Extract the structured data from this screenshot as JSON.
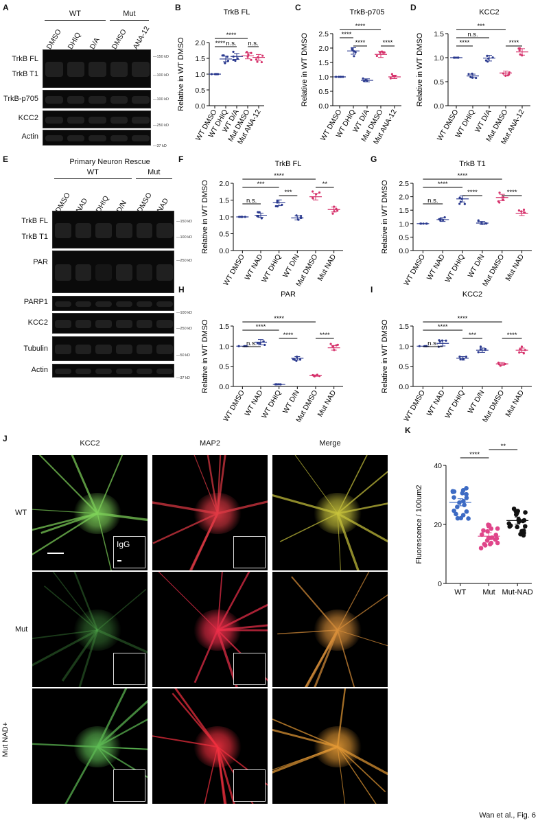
{
  "footer": "Wan et al., Fig. 6",
  "panelA": {
    "letter": "A",
    "groups": [
      "WT",
      "Mut"
    ],
    "lanes": [
      "DMSO",
      "DHIQ",
      "D/A",
      "DMSO",
      "ANA-12"
    ],
    "rows": [
      "TrkB FL",
      "TrkB T1",
      "TrkB-p705",
      "KCC2",
      "Actin"
    ],
    "markers": [
      "150 kD",
      "100 kD",
      "100 kD",
      "250 kD",
      "37 kD"
    ]
  },
  "panelE": {
    "letter": "E",
    "title": "Primary Neuron Rescue",
    "groups": [
      "WT",
      "Mut"
    ],
    "lanes": [
      "DMSO",
      "NAD",
      "DHIQ",
      "D/N",
      "DMSO",
      "NAD"
    ],
    "rows": [
      "TrkB FL",
      "TrkB T1",
      "PAR",
      "PARP1",
      "KCC2",
      "Tubulin",
      "Actin"
    ],
    "markers": [
      "150 kD",
      "100 kD",
      "250 kD",
      "100 kD",
      "250 kD",
      "50 kD",
      "37 kD"
    ]
  },
  "panelJ": {
    "letter": "J",
    "columns": [
      "KCC2",
      "MAP2",
      "Merge"
    ],
    "rows": [
      "WT",
      "Mut",
      "Mut NAD+"
    ],
    "inset_label": "IgG"
  },
  "chart_data": [
    {
      "panel": "B",
      "type": "scatter",
      "title": "TrkB FL",
      "ylabel": "Relative in WT DMSO",
      "categories": [
        "WT DMSO",
        "WT DHIQ",
        "WT D/A",
        "Mut DMSO",
        "Mut ANA-12"
      ],
      "values": [
        1.0,
        1.48,
        1.56,
        1.58,
        1.53
      ],
      "ylim": [
        0,
        2.0
      ],
      "yticks": [
        "0.0",
        "0.5",
        "1.0",
        "1.5",
        "2.0"
      ],
      "colors": [
        "#2b3a8f",
        "#2b3a8f",
        "#2b3a8f",
        "#d6336c",
        "#d6336c"
      ],
      "annotations": [
        {
          "text": "****",
          "from": 0,
          "to": 3,
          "level": 0
        },
        {
          "text": "****",
          "from": 0,
          "to": 1,
          "level": 1
        },
        {
          "text": "n.s.",
          "from": 1,
          "to": 2,
          "level": 1
        },
        {
          "text": "n.s.",
          "from": 3,
          "to": 4,
          "level": 1
        }
      ]
    },
    {
      "panel": "C",
      "type": "scatter",
      "title": "TrkB-p705",
      "ylabel": "Relative in WT DMSO",
      "categories": [
        "WT DMSO",
        "WT DHIQ",
        "WT D/A",
        "Mut DMSO",
        "Mut ANA-12"
      ],
      "values": [
        1.0,
        1.9,
        0.88,
        1.78,
        1.0
      ],
      "ylim": [
        0,
        2.5
      ],
      "yticks": [
        "0.0",
        "0.5",
        "1.0",
        "1.5",
        "2.0",
        "2.5"
      ],
      "colors": [
        "#2b3a8f",
        "#2b3a8f",
        "#2b3a8f",
        "#d6336c",
        "#d6336c"
      ],
      "annotations": [
        {
          "text": "****",
          "from": 0,
          "to": 3,
          "level": 0
        },
        {
          "text": "****",
          "from": 0,
          "to": 1,
          "level": 1
        },
        {
          "text": "****",
          "from": 1,
          "to": 2,
          "level": 2
        },
        {
          "text": "****",
          "from": 3,
          "to": 4,
          "level": 2
        }
      ]
    },
    {
      "panel": "D",
      "type": "scatter",
      "title": "KCC2",
      "ylabel": "Relative in WT DMSO",
      "categories": [
        "WT DMSO",
        "WT DHIQ",
        "WT D/A",
        "Mut DMSO",
        "Mut ANA-12"
      ],
      "values": [
        1.0,
        0.62,
        0.99,
        0.68,
        1.12
      ],
      "ylim": [
        0,
        1.5
      ],
      "yticks": [
        "0.0",
        "0.5",
        "1.0",
        "1.5"
      ],
      "colors": [
        "#2b3a8f",
        "#2b3a8f",
        "#2b3a8f",
        "#d6336c",
        "#d6336c"
      ],
      "annotations": [
        {
          "text": "****",
          "from": 0,
          "to": 1,
          "level": 2
        },
        {
          "text": "n.s.",
          "from": 0,
          "to": 2,
          "level": 1
        },
        {
          "text": "***",
          "from": 0,
          "to": 3,
          "level": 0
        },
        {
          "text": "****",
          "from": 3,
          "to": 4,
          "level": 2
        }
      ]
    },
    {
      "panel": "F",
      "type": "scatter",
      "title": "TrkB FL",
      "ylabel": "Relative in WT DMSO",
      "categories": [
        "WT DMSO",
        "WT NAD",
        "WT DHIQ",
        "WT D/N",
        "Mut DMSO",
        "Mut NAD"
      ],
      "values": [
        1.0,
        1.05,
        1.42,
        0.97,
        1.6,
        1.22
      ],
      "ylim": [
        0,
        2.0
      ],
      "yticks": [
        "0.0",
        "0.5",
        "1.0",
        "1.5",
        "2.0"
      ],
      "colors": [
        "#2b3a8f",
        "#2b3a8f",
        "#2b3a8f",
        "#2b3a8f",
        "#d6336c",
        "#d6336c"
      ],
      "annotations": [
        {
          "text": "****",
          "from": 0,
          "to": 4,
          "level": 0
        },
        {
          "text": "***",
          "from": 0,
          "to": 2,
          "level": 1
        },
        {
          "text": "***",
          "from": 2,
          "to": 3,
          "level": 2
        },
        {
          "text": "**",
          "from": 4,
          "to": 5,
          "level": 1
        },
        {
          "text": "n.s.",
          "from": 0,
          "to": 1,
          "level": 3
        }
      ]
    },
    {
      "panel": "G",
      "type": "scatter",
      "title": "TrkB T1",
      "ylabel": "Relative in WT DMSO",
      "categories": [
        "WT DMSO",
        "WT NAD",
        "WT DHIQ",
        "WT D/N",
        "Mut DMSO",
        "Mut NAD"
      ],
      "values": [
        1.0,
        1.15,
        1.92,
        1.02,
        1.97,
        1.38
      ],
      "ylim": [
        0,
        2.5
      ],
      "yticks": [
        "0.0",
        "0.5",
        "1.0",
        "1.5",
        "2.0",
        "2.5"
      ],
      "colors": [
        "#2b3a8f",
        "#2b3a8f",
        "#2b3a8f",
        "#2b3a8f",
        "#d6336c",
        "#d6336c"
      ],
      "annotations": [
        {
          "text": "****",
          "from": 0,
          "to": 4,
          "level": 0
        },
        {
          "text": "****",
          "from": 0,
          "to": 2,
          "level": 1
        },
        {
          "text": "****",
          "from": 2,
          "to": 3,
          "level": 2
        },
        {
          "text": "****",
          "from": 4,
          "to": 5,
          "level": 2
        },
        {
          "text": "n.s.",
          "from": 0,
          "to": 1,
          "level": 3
        }
      ]
    },
    {
      "panel": "H",
      "type": "scatter",
      "title": "PAR",
      "ylabel": "Relative in WT DMSO",
      "categories": [
        "WT DMSO",
        "WT NAD",
        "WT DHIQ",
        "WT D/N",
        "Mut DMSO",
        "Mut NAD"
      ],
      "values": [
        1.0,
        1.1,
        0.05,
        0.7,
        0.27,
        0.96
      ],
      "ylim": [
        0,
        1.5
      ],
      "yticks": [
        "0.0",
        "0.5",
        "1.0",
        "1.5"
      ],
      "colors": [
        "#2b3a8f",
        "#2b3a8f",
        "#2b3a8f",
        "#2b3a8f",
        "#d6336c",
        "#d6336c"
      ],
      "annotations": [
        {
          "text": "****",
          "from": 0,
          "to": 4,
          "level": 0
        },
        {
          "text": "****",
          "from": 0,
          "to": 2,
          "level": 1
        },
        {
          "text": "****",
          "from": 2,
          "to": 3,
          "level": 2
        },
        {
          "text": "****",
          "from": 4,
          "to": 5,
          "level": 2
        },
        {
          "text": "n.s.",
          "from": 0,
          "to": 1,
          "level": 3
        }
      ]
    },
    {
      "panel": "I",
      "type": "scatter",
      "title": "KCC2",
      "ylabel": "Relative in WT DMSO",
      "categories": [
        "WT DMSO",
        "WT NAD",
        "WT DHIQ",
        "WT D/N",
        "Mut DMSO",
        "Mut NAD"
      ],
      "values": [
        1.0,
        1.07,
        0.7,
        0.9,
        0.56,
        0.9
      ],
      "ylim": [
        0,
        1.5
      ],
      "yticks": [
        "0.0",
        "0.5",
        "1.0",
        "1.5"
      ],
      "colors": [
        "#2b3a8f",
        "#2b3a8f",
        "#2b3a8f",
        "#2b3a8f",
        "#d6336c",
        "#d6336c"
      ],
      "annotations": [
        {
          "text": "****",
          "from": 0,
          "to": 4,
          "level": 0
        },
        {
          "text": "****",
          "from": 0,
          "to": 2,
          "level": 1
        },
        {
          "text": "***",
          "from": 2,
          "to": 3,
          "level": 2
        },
        {
          "text": "****",
          "from": 4,
          "to": 5,
          "level": 2
        },
        {
          "text": "n.s.",
          "from": 0,
          "to": 1,
          "level": 3
        }
      ]
    },
    {
      "panel": "K",
      "type": "scatter",
      "ylabel": "Fluorescence / 100um2",
      "categories": [
        "WT",
        "Mut",
        "Mut-NAD"
      ],
      "values": [
        27.5,
        16.0,
        21.3
      ],
      "ylim": [
        0,
        40
      ],
      "yticks": [
        "0",
        "20",
        "40"
      ],
      "colors": [
        "#3d6bc4",
        "#e0458a",
        "#111111"
      ],
      "annotations": [
        {
          "text": "****",
          "from": 0,
          "to": 1,
          "level": 1
        },
        {
          "text": "**",
          "from": 1,
          "to": 2,
          "level": 0
        }
      ]
    }
  ]
}
